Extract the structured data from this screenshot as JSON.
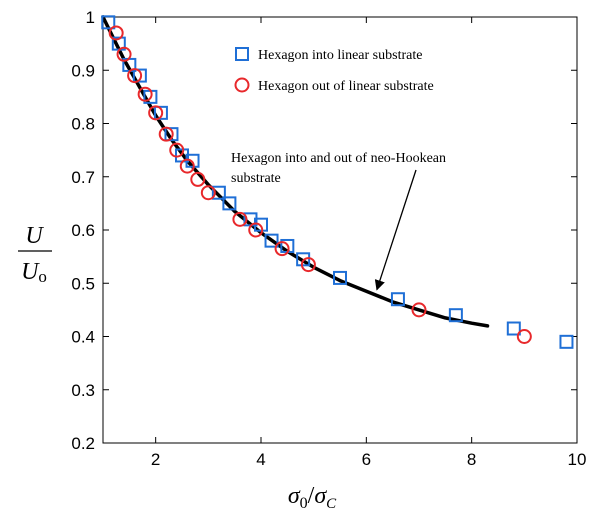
{
  "chart_data": {
    "type": "scatter",
    "xlim": [
      1,
      10
    ],
    "ylim": [
      0.2,
      1.0
    ],
    "x_ticks": [
      2,
      4,
      6,
      8,
      10
    ],
    "y_ticks": [
      0.2,
      0.3,
      0.4,
      0.5,
      0.6,
      0.7,
      0.8,
      0.9,
      1
    ],
    "grid": false,
    "legend_position": "top-right",
    "xlabel": {
      "main": "σ",
      "sub0": "0",
      "slash": "/",
      "main2": "σ",
      "sub1": "C"
    },
    "ylabel": {
      "numerator": "U",
      "denominator": "U",
      "denominator_sub": "o"
    },
    "series": [
      {
        "name": "Hexagon into linear substrate",
        "marker": "square",
        "color": "#1f6fd6",
        "x": [
          1.1,
          1.3,
          1.5,
          1.7,
          1.9,
          2.1,
          2.3,
          2.5,
          2.7,
          3.2,
          3.4,
          3.8,
          4.0,
          4.2,
          4.5,
          4.8,
          5.5,
          6.6,
          7.7,
          8.8,
          9.8
        ],
        "y": [
          0.99,
          0.95,
          0.91,
          0.89,
          0.85,
          0.82,
          0.78,
          0.74,
          0.73,
          0.67,
          0.65,
          0.62,
          0.61,
          0.58,
          0.57,
          0.545,
          0.51,
          0.47,
          0.44,
          0.415,
          0.39
        ]
      },
      {
        "name": "Hexagon out of linear substrate",
        "marker": "circle",
        "color": "#e8282b",
        "x": [
          1.25,
          1.4,
          1.6,
          1.8,
          2.0,
          2.2,
          2.4,
          2.6,
          2.8,
          3.0,
          3.6,
          3.9,
          4.4,
          4.9,
          7.0,
          9.0
        ],
        "y": [
          0.97,
          0.93,
          0.89,
          0.855,
          0.82,
          0.78,
          0.75,
          0.72,
          0.695,
          0.67,
          0.62,
          0.6,
          0.565,
          0.535,
          0.45,
          0.4
        ]
      },
      {
        "name": "Hexagon into and out of neo-Hookean substrate",
        "marker": "line",
        "color": "#000000",
        "x": [
          1.0,
          1.2,
          1.4,
          1.6,
          1.8,
          2.0,
          2.3,
          2.6,
          3.0,
          3.5,
          4.0,
          4.5,
          5.0,
          5.5,
          6.0,
          6.5,
          7.0,
          7.5,
          8.0,
          8.3
        ],
        "y": [
          1.0,
          0.96,
          0.92,
          0.885,
          0.85,
          0.815,
          0.77,
          0.73,
          0.685,
          0.635,
          0.595,
          0.56,
          0.53,
          0.505,
          0.485,
          0.465,
          0.45,
          0.435,
          0.425,
          0.42
        ]
      }
    ],
    "annotation": {
      "text_line1": "Hexagon into and out of neo-Hookean",
      "text_line2": "substrate",
      "arrow_to": [
        6.2,
        0.488
      ]
    }
  }
}
